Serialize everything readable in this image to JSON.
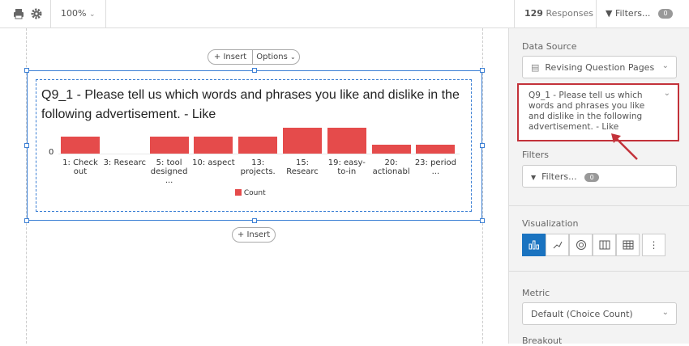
{
  "toolbar": {
    "zoom": "100%",
    "responses_count": "129",
    "responses_label": "Responses",
    "filters_label": "Filters...",
    "filters_count": "0"
  },
  "canvas": {
    "insert_label": "Insert",
    "options_label": "Options",
    "insert_below_label": "Insert"
  },
  "widget": {
    "title": "Q9_1 - Please tell us which words and phrases you like and dislike in the following advertisement. - Like"
  },
  "chart_data": {
    "type": "bar",
    "title": "Q9_1 - Please tell us which words and phrases you like and dislike in the following advertisement. - Like",
    "categories": [
      "1: Check out",
      "3: Researc",
      "5: tool designed ...",
      "10: aspect",
      "13: projects.",
      "15: Researc",
      "19: easy-to-in",
      "20: actionabl",
      "23: period ..."
    ],
    "series": [
      {
        "name": "Count",
        "values": [
          2,
          0,
          2,
          2,
          2,
          3,
          3,
          1,
          1
        ],
        "color": "#e54b4b"
      }
    ],
    "yticks": [
      "0"
    ],
    "legend": "bottom"
  },
  "panel": {
    "data_source_label": "Data Source",
    "data_source_value": "Revising Question Pages",
    "question_value": "Q9_1 - Please tell us which words and phrases you like and dislike in the following advertisement. - Like",
    "filters_label": "Filters",
    "filters_button": "Filters...",
    "filters_count": "0",
    "visualization_label": "Visualization",
    "visualizations": [
      "bar-chart",
      "line-chart",
      "pie-chart",
      "breakdown-bar",
      "table",
      "more"
    ],
    "selected_visualization": "bar-chart",
    "metric_label": "Metric",
    "metric_value": "Default (Choice Count)",
    "breakout_label": "Breakout"
  },
  "colors": {
    "accent": "#1a73c0",
    "highlight": "#c3323a",
    "bar": "#e54b4b"
  }
}
